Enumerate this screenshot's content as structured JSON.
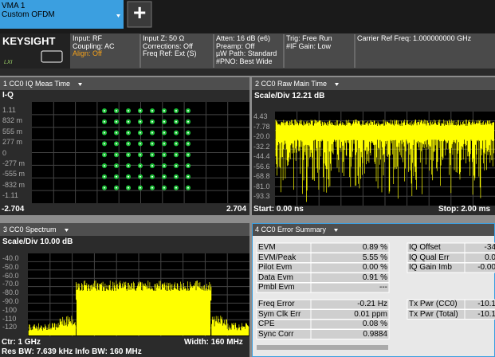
{
  "tab": {
    "line1": "VMA 1",
    "line2": "Custom OFDM"
  },
  "add_button": "+",
  "logo": "KEYSIGHT",
  "lxi": "LXI",
  "status_bar": {
    "columns": [
      [
        "Input: RF",
        "Coupling: AC",
        "Align: Off"
      ],
      [
        "Input Z: 50 Ω",
        "Corrections: Off",
        "Freq Ref: Ext (S)"
      ],
      [
        "Atten: 16 dB (e6)",
        "Preamp: Off",
        "µW Path: Standard",
        "#PNO: Best Wide"
      ],
      [
        "Trig: Free Run",
        "#IF Gain: Low"
      ],
      [
        "Carrier Ref Freq: 1.000000000 GHz"
      ]
    ]
  },
  "panels": [
    {
      "title": "1 CC0 IQ Meas Time",
      "axis_label": "I-Q",
      "y_labels": [
        "1.11",
        "832 m",
        "555 m",
        "277 m",
        "0",
        "-277 m",
        "-555 m",
        "-832 m",
        "-1.11"
      ],
      "x_left": "-2.704",
      "x_right": "2.704"
    },
    {
      "title": "2 CC0 Raw Main Time",
      "scale": "Scale/Div 12.21 dB",
      "y_labels": [
        "4.43",
        "-7.78",
        "-20.0",
        "-32.2",
        "-44.4",
        "-56.6",
        "-68.8",
        "-81.0",
        "-93.3"
      ],
      "x_left": "Start: 0.00 ns",
      "x_right": "Stop: 2.00 ms"
    },
    {
      "title": "3 CC0 Spectrum",
      "scale": "Scale/Div 10.00 dB",
      "y_labels": [
        "-40.0",
        "-50.0",
        "-60.0",
        "-70.0",
        "-80.0",
        "-90.0",
        "-100",
        "-110",
        "-120"
      ],
      "x_left": "Ctr: 1 GHz",
      "x_right": "Width: 160 MHz",
      "footer": "Res BW: 7.639 kHz  Info BW: 160 MHz"
    },
    {
      "title": "4 CC0 Error Summary",
      "table1": [
        [
          "EVM",
          "0.89 %",
          "IQ Offset",
          "-34"
        ],
        [
          "EVM/Peak",
          "5.55 %",
          "IQ Qual Err",
          "0.0"
        ],
        [
          "Pilot Evm",
          "0.00 %",
          "IQ Gain Imb",
          "-0.00"
        ],
        [
          "Data Evm",
          "0.91 %"
        ],
        [
          "Pmbl Evm",
          "---"
        ]
      ],
      "table2": [
        [
          "Freq Error",
          "-0.21 Hz",
          "Tx Pwr (CC0)",
          "-10.1"
        ],
        [
          "Sym Clk Err",
          "0.01 ppm",
          "Tx Pwr (Total)",
          "-10.1"
        ],
        [
          "CPE",
          "0.08 %"
        ],
        [
          "Sync Corr",
          "0.9884"
        ]
      ]
    }
  ]
}
